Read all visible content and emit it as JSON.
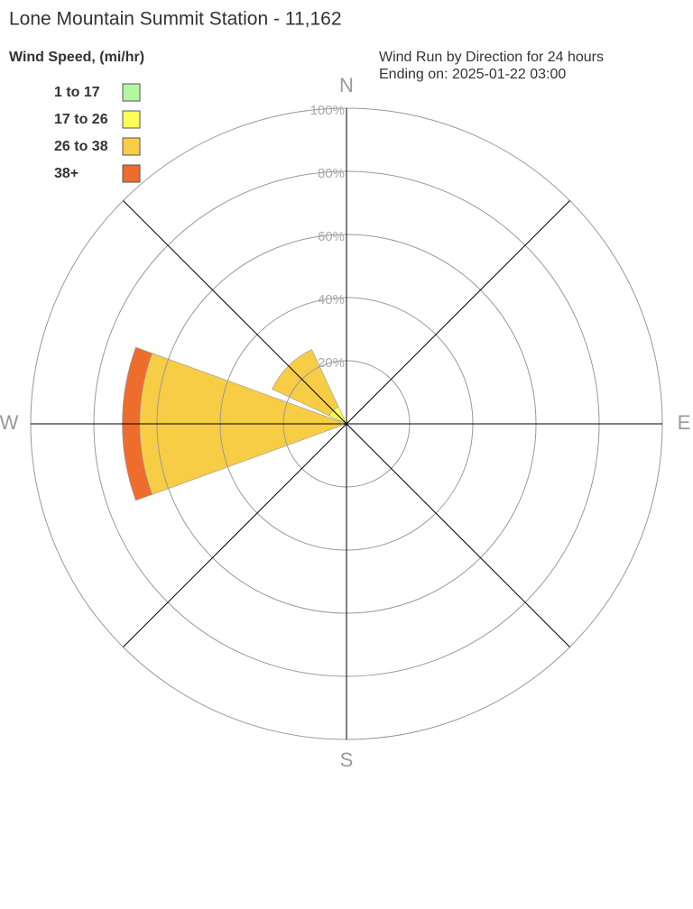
{
  "chart_data": {
    "type": "windrose",
    "title": "Lone Mountain Summit Station - 11,162",
    "legend_title": "Wind Speed, (mi/hr)",
    "subtitle": [
      "Wind Run by Direction for 24 hours",
      "Ending on: 2025-01-22 03:00"
    ],
    "categories": [
      "N",
      null,
      "E",
      null,
      "S",
      null,
      "W",
      null
    ],
    "series": [
      {
        "name": "1 to 17",
        "color": "#b3f7a3",
        "values": [
          0,
          0,
          0,
          0,
          0,
          0,
          0,
          0
        ]
      },
      {
        "name": "17 to 26",
        "color": "#ffff55",
        "values": [
          0,
          0,
          0,
          0,
          0,
          0,
          2,
          6
        ]
      },
      {
        "name": "26 to 38",
        "color": "#f7cd45",
        "values": [
          0,
          0,
          0,
          0,
          0,
          0,
          63.5,
          20
        ]
      },
      {
        "name": "38+",
        "color": "#ee6d2d",
        "values": [
          0,
          0,
          0,
          0,
          0,
          0,
          5.5,
          0
        ]
      }
    ],
    "rlim": [
      0,
      100
    ],
    "rticks": [
      {
        "value": 20,
        "label": "20%"
      },
      {
        "value": 40,
        "label": "40%"
      },
      {
        "value": 60,
        "label": "60%"
      },
      {
        "value": 80,
        "label": "80%"
      },
      {
        "value": 100,
        "label": "100%"
      }
    ]
  }
}
